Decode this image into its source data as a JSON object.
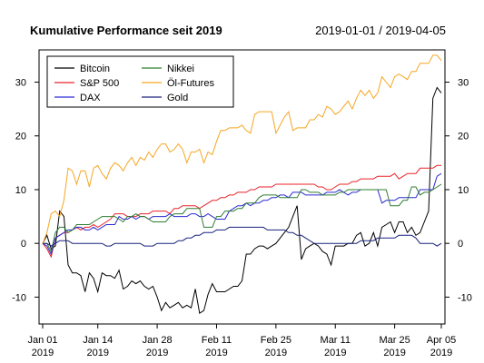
{
  "header": {
    "title": "Kumulative Performance seit 2019",
    "date_range": "2019-01-01 / 2019-04-05"
  },
  "chart_data": {
    "type": "line",
    "title": "Kumulative Performance seit 2019",
    "subtitle": "2019-01-01 / 2019-04-05",
    "xlabel": "",
    "ylabel": "",
    "xlim": [
      0,
      94
    ],
    "ylim": [
      -15,
      36
    ],
    "y_ticks": [
      -10,
      0,
      10,
      20,
      30
    ],
    "y_axis_sides": [
      "left",
      "right"
    ],
    "grid": false,
    "legend_position": "top-left",
    "x_ticks": [
      {
        "day": 0,
        "label": "Jan 01",
        "year": "2019"
      },
      {
        "day": 13,
        "label": "Jan 14",
        "year": "2019"
      },
      {
        "day": 27,
        "label": "Jan 28",
        "year": "2019"
      },
      {
        "day": 41,
        "label": "Feb 11",
        "year": "2019"
      },
      {
        "day": 55,
        "label": "Feb 25",
        "year": "2019"
      },
      {
        "day": 69,
        "label": "Mar 11",
        "year": "2019"
      },
      {
        "day": 83,
        "label": "Mar 25",
        "year": "2019"
      },
      {
        "day": 94,
        "label": "Apr 05",
        "year": "2019"
      }
    ],
    "series": [
      {
        "name": "Bitcoin",
        "color": "#000000",
        "x": [
          0,
          1,
          2,
          3,
          4,
          5,
          6,
          7,
          8,
          9,
          10,
          11,
          12,
          13,
          14,
          15,
          16,
          17,
          18,
          19,
          20,
          21,
          22,
          23,
          24,
          25,
          26,
          27,
          28,
          29,
          30,
          31,
          32,
          33,
          34,
          35,
          36,
          37,
          38,
          39,
          40,
          41,
          42,
          43,
          44,
          45,
          46,
          47,
          48,
          49,
          50,
          51,
          52,
          53,
          54,
          55,
          56,
          57,
          58,
          59,
          60,
          61,
          62,
          63,
          64,
          65,
          66,
          67,
          68,
          69,
          70,
          71,
          72,
          73,
          74,
          75,
          76,
          77,
          78,
          79,
          80,
          81,
          82,
          83,
          84,
          85,
          86,
          87,
          88,
          89,
          90,
          91,
          92,
          93,
          94
        ],
        "y": [
          0,
          1.5,
          -1,
          -0.5,
          6,
          5,
          -4,
          -5.5,
          -5.5,
          -6,
          -9,
          -5.5,
          -6.5,
          -9,
          -5.5,
          -6,
          -6,
          -6.5,
          -5,
          -8.5,
          -8,
          -7,
          -7.5,
          -7,
          -8,
          -8.5,
          -8,
          -10,
          -12.5,
          -11,
          -12,
          -11.5,
          -11,
          -12,
          -11.5,
          -12,
          -8.5,
          -13,
          -12.5,
          -9.5,
          -7.5,
          -9,
          -9,
          -9,
          -8.5,
          -8,
          -8,
          -7,
          -2,
          -2,
          -1,
          -0.5,
          -0.5,
          -1,
          -0.5,
          0,
          1,
          2,
          3,
          5,
          7,
          -3,
          -1,
          -0.5,
          0,
          -0.5,
          -1.5,
          -2,
          -4,
          -0.5,
          -0.5,
          -0.5,
          0,
          0,
          1.5,
          2,
          -0.5,
          0,
          2,
          -0.5,
          3,
          3.5,
          4,
          2,
          4,
          4,
          2,
          3,
          1.5,
          2,
          4,
          6,
          27,
          29,
          28
        ]
      },
      {
        "name": "S&P 500",
        "color": "#e8232a",
        "x": [
          0,
          1,
          2,
          3,
          4,
          5,
          6,
          7,
          8,
          9,
          10,
          11,
          12,
          13,
          14,
          15,
          16,
          17,
          18,
          19,
          20,
          21,
          22,
          23,
          24,
          25,
          26,
          27,
          28,
          29,
          30,
          31,
          32,
          33,
          34,
          35,
          36,
          37,
          38,
          39,
          40,
          41,
          42,
          43,
          44,
          45,
          46,
          47,
          48,
          49,
          50,
          51,
          52,
          53,
          54,
          55,
          56,
          57,
          58,
          59,
          60,
          61,
          62,
          63,
          64,
          65,
          66,
          67,
          68,
          69,
          70,
          71,
          72,
          73,
          74,
          75,
          76,
          77,
          78,
          79,
          80,
          81,
          82,
          83,
          84,
          85,
          86,
          87,
          88,
          89,
          90,
          91,
          92,
          93,
          94
        ],
        "y": [
          0,
          -1,
          -2.5,
          1,
          1.5,
          2,
          2,
          2.5,
          3,
          2.5,
          3,
          3,
          3.5,
          3,
          3.5,
          4,
          4.5,
          5.5,
          5.5,
          5.5,
          5,
          5,
          5,
          5.5,
          5.5,
          5.5,
          6,
          6,
          6,
          6,
          5.5,
          6.5,
          6.5,
          7,
          7,
          7,
          7,
          6.5,
          7,
          7.5,
          8,
          8,
          8.5,
          8.5,
          9,
          9,
          9.5,
          9.5,
          9.5,
          10,
          10,
          10.5,
          10.5,
          10.5,
          10.5,
          11,
          11,
          11,
          11,
          11,
          11,
          11,
          11,
          11,
          11,
          10.5,
          10.5,
          10,
          10,
          10.5,
          11,
          11,
          11,
          11.5,
          11.5,
          12,
          12,
          12,
          12,
          12.5,
          12.5,
          12.5,
          12.5,
          13,
          12,
          12.5,
          13,
          13,
          13,
          14,
          14,
          14,
          14,
          14.5,
          14.5
        ]
      },
      {
        "name": "DAX",
        "color": "#2b2bd4",
        "x": [
          0,
          1,
          2,
          3,
          4,
          5,
          6,
          7,
          8,
          9,
          10,
          11,
          12,
          13,
          14,
          15,
          16,
          17,
          18,
          19,
          20,
          21,
          22,
          23,
          24,
          25,
          26,
          27,
          28,
          29,
          30,
          31,
          32,
          33,
          34,
          35,
          36,
          37,
          38,
          39,
          40,
          41,
          42,
          43,
          44,
          45,
          46,
          47,
          48,
          49,
          50,
          51,
          52,
          53,
          54,
          55,
          56,
          57,
          58,
          59,
          60,
          61,
          62,
          63,
          64,
          65,
          66,
          67,
          68,
          69,
          70,
          71,
          72,
          73,
          74,
          75,
          76,
          77,
          78,
          79,
          80,
          81,
          82,
          83,
          84,
          85,
          86,
          87,
          88,
          89,
          90,
          91,
          92,
          93,
          94
        ],
        "y": [
          0,
          -0.5,
          -2,
          1,
          1.5,
          2,
          2.5,
          2.5,
          3,
          3,
          2.5,
          2.5,
          3,
          2.5,
          3,
          3.5,
          3.5,
          3.5,
          5,
          4.5,
          4.5,
          5,
          4.5,
          5,
          5,
          4.5,
          5,
          5,
          5,
          5,
          5.5,
          5,
          5,
          5,
          5,
          5.5,
          5.5,
          5,
          5,
          5.5,
          5,
          4.5,
          4.5,
          4.5,
          6,
          6.5,
          7,
          7,
          7.5,
          7,
          7.5,
          7.5,
          8,
          8,
          8.5,
          8.5,
          9,
          9,
          8.5,
          9.5,
          9.5,
          9.5,
          9,
          9,
          9,
          9,
          9,
          9.5,
          9.5,
          9.5,
          10,
          9.5,
          9,
          9.5,
          9.5,
          10,
          10,
          10,
          10,
          10,
          7.5,
          8,
          8,
          8,
          8.5,
          8.5,
          8.5,
          8.5,
          8.5,
          10,
          10,
          10,
          10,
          12.5,
          13
        ]
      },
      {
        "name": "Nikkei",
        "color": "#2e7d32",
        "x": [
          0,
          1,
          2,
          3,
          4,
          5,
          6,
          7,
          8,
          9,
          10,
          11,
          12,
          13,
          14,
          15,
          16,
          17,
          18,
          19,
          20,
          21,
          22,
          23,
          24,
          25,
          26,
          27,
          28,
          29,
          30,
          31,
          32,
          33,
          34,
          35,
          36,
          37,
          38,
          39,
          40,
          41,
          42,
          43,
          44,
          45,
          46,
          47,
          48,
          49,
          50,
          51,
          52,
          53,
          54,
          55,
          56,
          57,
          58,
          59,
          60,
          61,
          62,
          63,
          64,
          65,
          66,
          67,
          68,
          69,
          70,
          71,
          72,
          73,
          74,
          75,
          76,
          77,
          78,
          79,
          80,
          81,
          82,
          83,
          84,
          85,
          86,
          87,
          88,
          89,
          90,
          91,
          92,
          93,
          94
        ],
        "y": [
          0,
          0,
          -1.5,
          2,
          3,
          3,
          2,
          2.5,
          3.5,
          3.5,
          3.5,
          3.5,
          4,
          4.5,
          5,
          5,
          5,
          5,
          4.5,
          4,
          5,
          5,
          5.5,
          5,
          5,
          4.5,
          4,
          4,
          4,
          4,
          5,
          5.5,
          5.5,
          5.5,
          6.5,
          6.5,
          6.5,
          6.5,
          3,
          3,
          3,
          5,
          5,
          6,
          6,
          6,
          6.5,
          6.5,
          7.5,
          7.5,
          7.5,
          8.5,
          9,
          9,
          9,
          9,
          8.5,
          8.5,
          8.5,
          8.5,
          8.5,
          10,
          10,
          9.5,
          9.5,
          9.5,
          9,
          9,
          9,
          9,
          9.5,
          9.5,
          10,
          10,
          10,
          10,
          10,
          10,
          10,
          10,
          10,
          10,
          7,
          7,
          7,
          8,
          8,
          10.5,
          10.5,
          9,
          9.5,
          9.5,
          10,
          10.5,
          11
        ]
      },
      {
        "name": "Öl-Futures",
        "color": "#f5a623",
        "x": [
          0,
          1,
          2,
          3,
          4,
          5,
          6,
          7,
          8,
          9,
          10,
          11,
          12,
          13,
          14,
          15,
          16,
          17,
          18,
          19,
          20,
          21,
          22,
          23,
          24,
          25,
          26,
          27,
          28,
          29,
          30,
          31,
          32,
          33,
          34,
          35,
          36,
          37,
          38,
          39,
          40,
          41,
          42,
          43,
          44,
          45,
          46,
          47,
          48,
          49,
          50,
          51,
          52,
          53,
          54,
          55,
          56,
          57,
          58,
          59,
          60,
          61,
          62,
          63,
          64,
          65,
          66,
          67,
          68,
          69,
          70,
          71,
          72,
          73,
          74,
          75,
          76,
          77,
          78,
          79,
          80,
          81,
          82,
          83,
          84,
          85,
          86,
          87,
          88,
          89,
          90,
          91,
          92,
          93,
          94
        ],
        "y": [
          0,
          2,
          5.5,
          6,
          5,
          8,
          14,
          13.5,
          11,
          13.5,
          13.5,
          10.5,
          14,
          14.5,
          13,
          12,
          14,
          15,
          14.5,
          13.5,
          15,
          16,
          14.5,
          16,
          15.5,
          17,
          16,
          17.5,
          18.5,
          18.5,
          17,
          17.5,
          18.5,
          17.5,
          15,
          17,
          17,
          17.5,
          15,
          17,
          16.5,
          19,
          21,
          21,
          21.5,
          21.5,
          21.5,
          22,
          21,
          20.5,
          24,
          24.5,
          24.5,
          24.5,
          24.5,
          20.5,
          22,
          23.5,
          24.5,
          21,
          21.5,
          21.5,
          21.5,
          23,
          23,
          24,
          23.5,
          25.5,
          25,
          24,
          24.5,
          25.5,
          26.5,
          25,
          27,
          28.5,
          27.5,
          28.5,
          27,
          28,
          31,
          30,
          29,
          31,
          31.5,
          31,
          30.5,
          32,
          32,
          33.5,
          33.5,
          33.5,
          35,
          35,
          34
        ]
      },
      {
        "name": "Gold",
        "color": "#1a237e",
        "x": [
          0,
          1,
          2,
          3,
          4,
          5,
          6,
          7,
          8,
          9,
          10,
          11,
          12,
          13,
          14,
          15,
          16,
          17,
          18,
          19,
          20,
          21,
          22,
          23,
          24,
          25,
          26,
          27,
          28,
          29,
          30,
          31,
          32,
          33,
          34,
          35,
          36,
          37,
          38,
          39,
          40,
          41,
          42,
          43,
          44,
          45,
          46,
          47,
          48,
          49,
          50,
          51,
          52,
          53,
          54,
          55,
          56,
          57,
          58,
          59,
          60,
          61,
          62,
          63,
          64,
          65,
          66,
          67,
          68,
          69,
          70,
          71,
          72,
          73,
          74,
          75,
          76,
          77,
          78,
          79,
          80,
          81,
          82,
          83,
          84,
          85,
          86,
          87,
          88,
          89,
          90,
          91,
          92,
          93,
          94
        ],
        "y": [
          0,
          0,
          -0.5,
          0,
          0.5,
          0.5,
          0.5,
          0,
          0,
          0,
          0,
          0,
          0,
          0,
          0,
          -0.5,
          -0.5,
          0,
          0,
          0,
          0,
          0,
          0,
          0,
          -0.5,
          -0.5,
          -0.5,
          0,
          0,
          0,
          0,
          0,
          0.5,
          0.5,
          1,
          1,
          1.5,
          1.5,
          2,
          2,
          2,
          2.5,
          2.5,
          2.5,
          3,
          3,
          3,
          3,
          3,
          3,
          3,
          3,
          3,
          2.5,
          2.5,
          2.5,
          2.5,
          2.5,
          2,
          2,
          1.5,
          1.5,
          1,
          0.5,
          0,
          0,
          0,
          0,
          0,
          0,
          0,
          0,
          0,
          0,
          0,
          0.5,
          0.5,
          0.5,
          0.5,
          1,
          1,
          1,
          1,
          1,
          1.5,
          1.5,
          1.5,
          1.5,
          1,
          0,
          0,
          0,
          0,
          -0.5,
          0
        ]
      }
    ]
  }
}
